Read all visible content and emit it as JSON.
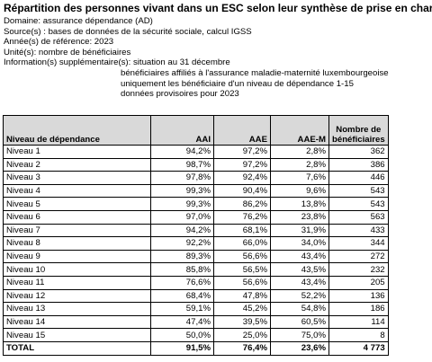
{
  "header": {
    "title": "Répartition des personnes vivant dans un ESC selon leur synthèse de prise en charge"
  },
  "meta": [
    "Domaine: assurance dépendance (AD)",
    "Source(s) : bases de données de la sécurité sociale, calcul IGSS",
    "Année(s) de référence: 2023",
    "Unité(s): nombre de bénéficiaires"
  ],
  "info": {
    "label": "Information(s) supplémentaire(s):",
    "notes": [
      "situation au 31 décembre",
      "bénéficiaires affiliés à l'assurance maladie-maternité luxembourgeoise",
      "uniquement les bénéficiaire d'un niveau de dépendance 1-15",
      "données provisoires pour 2023"
    ]
  },
  "table": {
    "columns": [
      "Niveau de dépendance",
      "AAI",
      "AAE",
      "AAE-M",
      "Nombre de bénéficiaires"
    ],
    "rows": [
      [
        "Niveau 1",
        "94,2%",
        "97,2%",
        "2,8%",
        "362"
      ],
      [
        "Niveau 2",
        "98,7%",
        "97,2%",
        "2,8%",
        "386"
      ],
      [
        "Niveau 3",
        "97,8%",
        "92,4%",
        "7,6%",
        "446"
      ],
      [
        "Niveau 4",
        "99,3%",
        "90,4%",
        "9,6%",
        "543"
      ],
      [
        "Niveau 5",
        "99,3%",
        "86,2%",
        "13,8%",
        "543"
      ],
      [
        "Niveau 6",
        "97,0%",
        "76,2%",
        "23,8%",
        "563"
      ],
      [
        "Niveau 7",
        "94,2%",
        "68,1%",
        "31,9%",
        "433"
      ],
      [
        "Niveau 8",
        "92,2%",
        "66,0%",
        "34,0%",
        "344"
      ],
      [
        "Niveau 9",
        "89,3%",
        "56,6%",
        "43,4%",
        "272"
      ],
      [
        "Niveau 10",
        "85,8%",
        "56,5%",
        "43,5%",
        "232"
      ],
      [
        "Niveau 11",
        "76,6%",
        "56,6%",
        "43,4%",
        "205"
      ],
      [
        "Niveau 12",
        "68,4%",
        "47,8%",
        "52,2%",
        "136"
      ],
      [
        "Niveau 13",
        "59,1%",
        "45,2%",
        "54,8%",
        "186"
      ],
      [
        "Niveau 14",
        "47,4%",
        "39,5%",
        "60,5%",
        "114"
      ],
      [
        "Niveau 15",
        "50,0%",
        "25,0%",
        "75,0%",
        "8"
      ]
    ],
    "total": [
      "TOTAL",
      "91,5%",
      "76,4%",
      "23,6%",
      "4 773"
    ]
  }
}
